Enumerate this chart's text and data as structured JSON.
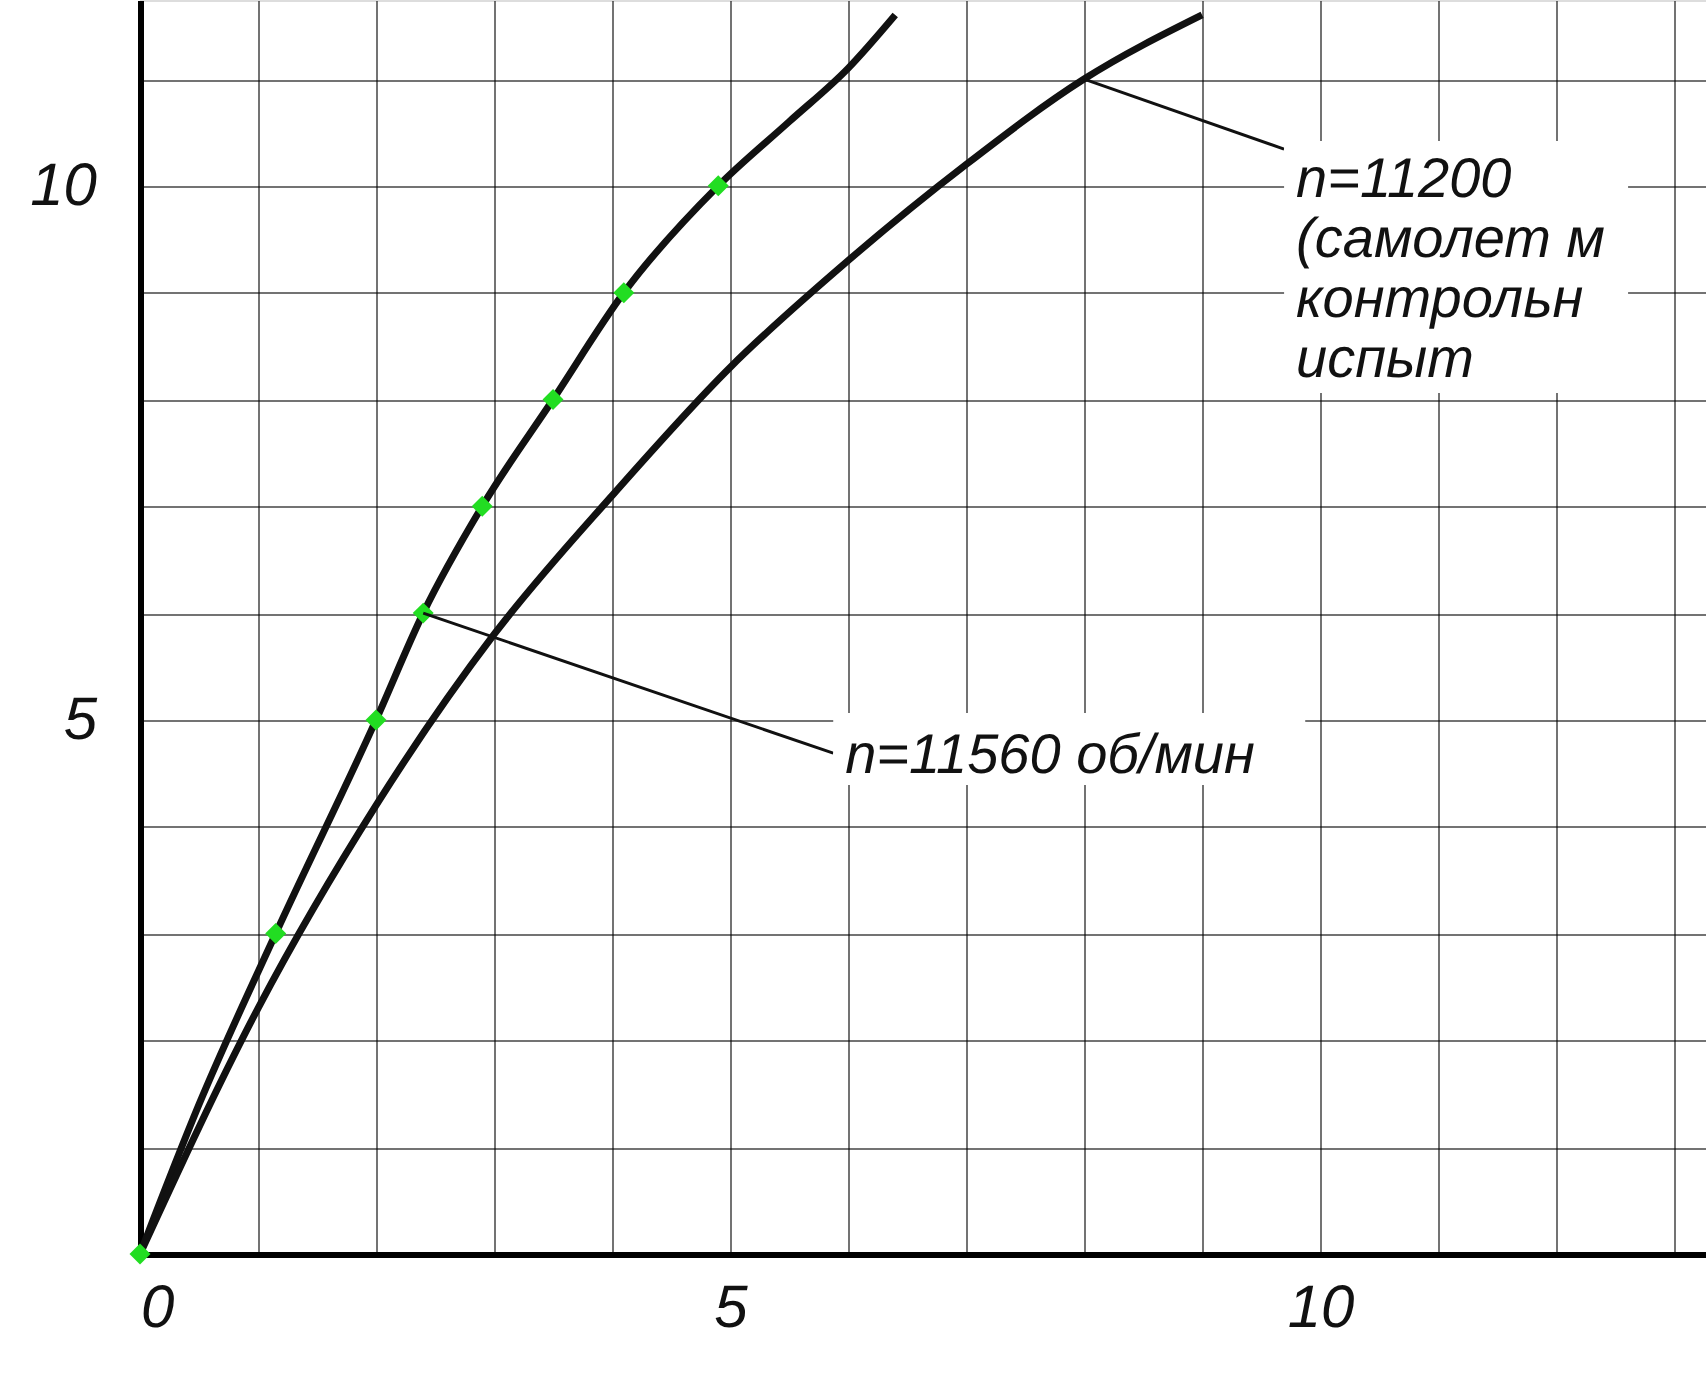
{
  "chart_data": {
    "type": "line",
    "xlim": [
      0,
      13.27
    ],
    "ylim": [
      0,
      11.74
    ],
    "xticks": [
      0,
      {
        "value": 1,
        "label": null
      },
      {
        "value": 2,
        "label": null
      },
      {
        "value": 3,
        "label": null
      },
      {
        "value": 4,
        "label": null
      },
      5,
      {
        "value": 6,
        "label": null
      },
      {
        "value": 7,
        "label": null
      },
      {
        "value": 8,
        "label": null
      },
      {
        "value": 9,
        "label": null
      },
      10,
      {
        "value": 11,
        "label": null
      },
      {
        "value": 12,
        "label": null
      },
      {
        "value": 13,
        "label": null
      }
    ],
    "yticks": [
      {
        "value": 0,
        "label": null
      },
      {
        "value": 1,
        "label": null
      },
      {
        "value": 2,
        "label": null
      },
      {
        "value": 3,
        "label": null
      },
      {
        "value": 4,
        "label": null
      },
      5,
      {
        "value": 6,
        "label": null
      },
      {
        "value": 7,
        "label": null
      },
      {
        "value": 8,
        "label": null
      },
      {
        "value": 9,
        "label": null
      },
      10,
      {
        "value": 11,
        "label": null
      }
    ],
    "grid": true,
    "line_style": "solid",
    "series": [
      {
        "marker": "none",
        "color": "#111111",
        "x": [
          0,
          0.5,
          1.15,
          2,
          2.4,
          2.9,
          3.5,
          4.1,
          4.9,
          5.5,
          6,
          6.4
        ],
        "values": [
          0,
          1.4,
          3,
          5,
          6,
          7,
          8,
          9,
          10,
          10.6,
          11.1,
          11.6
        ]
      },
      {
        "marker": "none",
        "color": "#111111",
        "x": [
          0,
          1,
          2,
          3,
          4,
          5,
          6,
          7,
          8,
          9
        ],
        "values": [
          0,
          2.3,
          4.2,
          5.8,
          7.1,
          8.3,
          9.3,
          10.2,
          11,
          11.6
        ]
      },
      {
        "type": "scatter",
        "marker": "diamond",
        "color": "#22dd22",
        "x": [
          0,
          1.15,
          2,
          2.4,
          2.9,
          3.5,
          4.1,
          4.9
        ],
        "values": [
          0,
          3,
          5,
          6,
          7,
          8,
          9,
          10
        ]
      }
    ],
    "annotations": [
      {
        "text": "n=11560 об/мин",
        "x": 2.4,
        "y": 6
      },
      {
        "text": "n=11200\n(самолет м\nконтрольн\nиспыт",
        "x": 8,
        "y": 11
      }
    ]
  }
}
